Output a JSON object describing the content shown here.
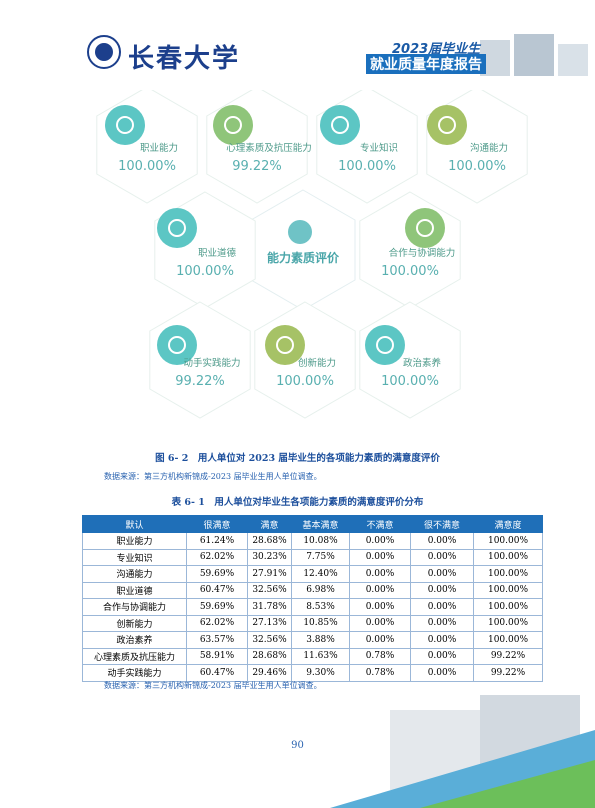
{
  "header": {
    "logo": "长春大学",
    "report_year": "2023届毕业生",
    "report_title": "就业质量年度报告"
  },
  "figure": {
    "center": "能力素质评价",
    "items": [
      {
        "name": "职业能力",
        "value": "100.00%"
      },
      {
        "name": "心理素质及抗压能力",
        "value": "99.22%"
      },
      {
        "name": "专业知识",
        "value": "100.00%"
      },
      {
        "name": "沟通能力",
        "value": "100.00%"
      },
      {
        "name": "职业道德",
        "value": "100.00%"
      },
      {
        "name": "合作与协调能力",
        "value": "100.00%"
      },
      {
        "name": "动手实践能力",
        "value": "99.22%"
      },
      {
        "name": "创新能力",
        "value": "100.00%"
      },
      {
        "name": "政治素养",
        "value": "100.00%"
      }
    ],
    "caption": "图 6- 2　用人单位对 2023 届毕业生的各项能力素质的满意度评价",
    "source": "数据来源：第三方机构新锦成-2023 届毕业生用人单位调查。"
  },
  "table": {
    "title": "表 6- 1　用人单位对毕业生各项能力素质的满意度评价分布",
    "header": [
      "默认",
      "很满意",
      "满意",
      "基本满意",
      "不满意",
      "很不满意",
      "满意度"
    ],
    "rows": [
      [
        "职业能力",
        "61.24%",
        "28.68%",
        "10.08%",
        "0.00%",
        "0.00%",
        "100.00%"
      ],
      [
        "专业知识",
        "62.02%",
        "30.23%",
        "7.75%",
        "0.00%",
        "0.00%",
        "100.00%"
      ],
      [
        "沟通能力",
        "59.69%",
        "27.91%",
        "12.40%",
        "0.00%",
        "0.00%",
        "100.00%"
      ],
      [
        "职业道德",
        "60.47%",
        "32.56%",
        "6.98%",
        "0.00%",
        "0.00%",
        "100.00%"
      ],
      [
        "合作与协调能力",
        "59.69%",
        "31.78%",
        "8.53%",
        "0.00%",
        "0.00%",
        "100.00%"
      ],
      [
        "创新能力",
        "62.02%",
        "27.13%",
        "10.85%",
        "0.00%",
        "0.00%",
        "100.00%"
      ],
      [
        "政治素养",
        "63.57%",
        "32.56%",
        "3.88%",
        "0.00%",
        "0.00%",
        "100.00%"
      ],
      [
        "心理素质及抗压能力",
        "58.91%",
        "28.68%",
        "11.63%",
        "0.78%",
        "0.00%",
        "99.22%"
      ],
      [
        "动手实践能力",
        "60.47%",
        "29.46%",
        "9.30%",
        "0.78%",
        "0.00%",
        "99.22%"
      ]
    ],
    "source": "数据来源：第三方机构新锦成-2023 届毕业生用人单位调查。"
  },
  "page_number": "90"
}
